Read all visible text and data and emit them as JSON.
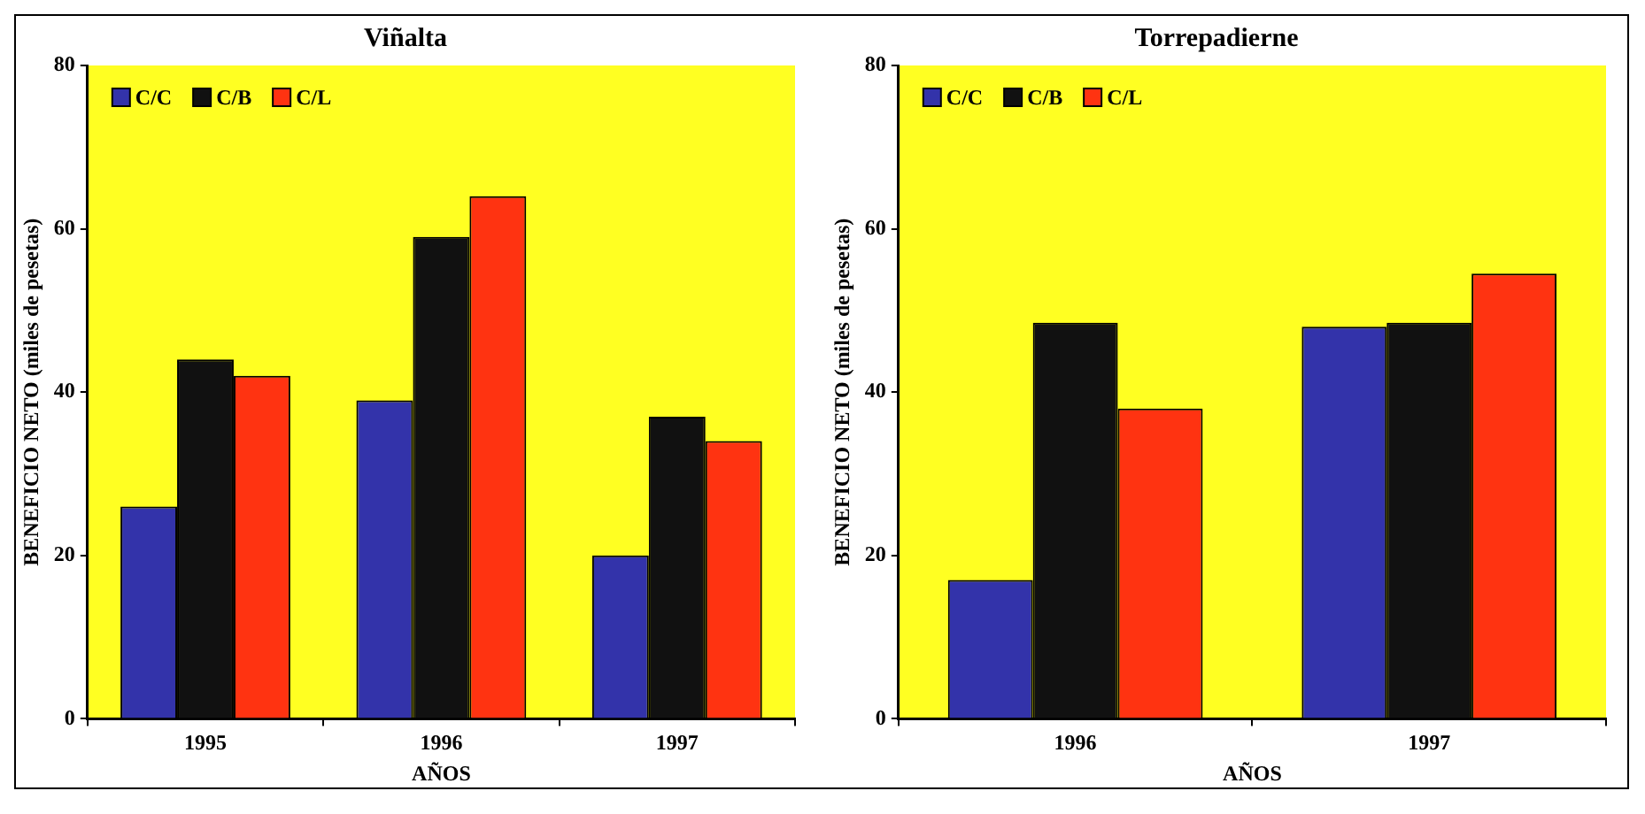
{
  "chart_data": [
    {
      "type": "bar",
      "title": "Viñalta",
      "xlabel": "AÑOS",
      "ylabel": "BENEFICIO NETO (miles de pesetas)",
      "categories": [
        "1995",
        "1996",
        "1997"
      ],
      "series": [
        {
          "name": "C/C",
          "color": "#3333aa",
          "values": [
            26,
            39,
            20
          ]
        },
        {
          "name": "C/B",
          "color": "#111111",
          "values": [
            44,
            59,
            37
          ]
        },
        {
          "name": "C/L",
          "color": "#ff3311",
          "values": [
            42,
            64,
            34
          ]
        }
      ],
      "ylim": [
        0,
        80
      ],
      "yticks": [
        0,
        20,
        40,
        60,
        80
      ],
      "grid": false,
      "legend": "top left"
    },
    {
      "type": "bar",
      "title": "Torrepadierne",
      "xlabel": "AÑOS",
      "ylabel": "BENEFICIO NETO (miles de pesetas)",
      "categories": [
        "1996",
        "1997"
      ],
      "series": [
        {
          "name": "C/C",
          "color": "#3333aa",
          "values": [
            17,
            48
          ]
        },
        {
          "name": "C/B",
          "color": "#111111",
          "values": [
            48.5,
            48.5
          ]
        },
        {
          "name": "C/L",
          "color": "#ff3311",
          "values": [
            38,
            54.5
          ]
        }
      ],
      "ylim": [
        0,
        80
      ],
      "yticks": [
        0,
        20,
        40,
        60,
        80
      ],
      "grid": false,
      "legend": "top left"
    }
  ]
}
